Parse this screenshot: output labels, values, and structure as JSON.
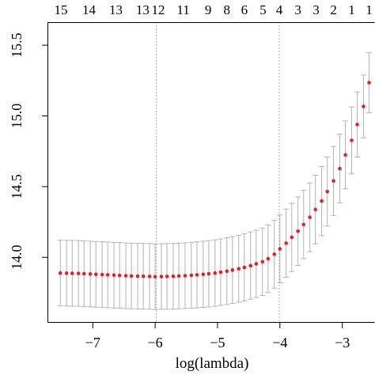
{
  "chart_data": {
    "type": "scatter",
    "error_bars": true,
    "xlabel": "log(lambda)",
    "xlim": [
      -7.72,
      -2.45
    ],
    "ylim": [
      13.54,
      15.66
    ],
    "grid": false,
    "xticks": [
      -7,
      -6,
      -5,
      -4,
      -3
    ],
    "xtick_labels": [
      "−7",
      "−6",
      "−5",
      "−4",
      "−3"
    ],
    "yticks": [
      14.0,
      14.5,
      15.0,
      15.5
    ],
    "ytick_labels": [
      "14.0",
      "14.5",
      "15.0",
      "15.5"
    ],
    "top_axis": [
      {
        "x": -7.51,
        "label": "15"
      },
      {
        "x": -7.06,
        "label": "14"
      },
      {
        "x": -6.63,
        "label": "13"
      },
      {
        "x": -6.2,
        "label": "13"
      },
      {
        "x": -5.95,
        "label": "12"
      },
      {
        "x": -5.55,
        "label": "11"
      },
      {
        "x": -5.15,
        "label": "9"
      },
      {
        "x": -4.85,
        "label": "8"
      },
      {
        "x": -4.57,
        "label": "6"
      },
      {
        "x": -4.27,
        "label": "5"
      },
      {
        "x": -4.01,
        "label": "4"
      },
      {
        "x": -3.71,
        "label": "3"
      },
      {
        "x": -3.42,
        "label": "3"
      },
      {
        "x": -3.14,
        "label": "2"
      },
      {
        "x": -2.85,
        "label": "1"
      },
      {
        "x": -2.57,
        "label": "1"
      }
    ],
    "vlines": [
      -5.98,
      -4.01
    ],
    "x": [
      -7.52,
      -7.42,
      -7.33,
      -7.23,
      -7.14,
      -7.04,
      -6.95,
      -6.85,
      -6.76,
      -6.66,
      -6.57,
      -6.47,
      -6.38,
      -6.28,
      -6.19,
      -6.09,
      -6.0,
      -5.9,
      -5.81,
      -5.71,
      -5.62,
      -5.52,
      -5.42,
      -5.33,
      -5.23,
      -5.14,
      -5.04,
      -4.95,
      -4.85,
      -4.76,
      -4.66,
      -4.57,
      -4.47,
      -4.38,
      -4.28,
      -4.19,
      -4.09,
      -4.0,
      -3.9,
      -3.81,
      -3.71,
      -3.62,
      -3.52,
      -3.43,
      -3.33,
      -3.24,
      -3.14,
      -3.04,
      -2.95,
      -2.85,
      -2.76,
      -2.66,
      -2.57
    ],
    "y": [
      13.889,
      13.888,
      13.887,
      13.886,
      13.884,
      13.882,
      13.88,
      13.878,
      13.876,
      13.874,
      13.872,
      13.87,
      13.868,
      13.867,
      13.866,
      13.865,
      13.863,
      13.864,
      13.865,
      13.866,
      13.868,
      13.87,
      13.873,
      13.876,
      13.88,
      13.884,
      13.889,
      13.895,
      13.902,
      13.91,
      13.919,
      13.929,
      13.941,
      13.954,
      13.969,
      13.99,
      14.022,
      14.06,
      14.1,
      14.141,
      14.185,
      14.232,
      14.283,
      14.338,
      14.398,
      14.465,
      14.54,
      14.628,
      14.724,
      14.827,
      14.939,
      15.067,
      15.235
    ],
    "upper": [
      14.121,
      14.12,
      14.119,
      14.118,
      14.116,
      14.114,
      14.112,
      14.11,
      14.108,
      14.106,
      14.104,
      14.102,
      14.1,
      14.099,
      14.098,
      14.097,
      14.095,
      14.096,
      14.097,
      14.098,
      14.1,
      14.102,
      14.106,
      14.109,
      14.114,
      14.118,
      14.124,
      14.13,
      14.138,
      14.146,
      14.156,
      14.166,
      14.179,
      14.192,
      14.208,
      14.229,
      14.262,
      14.3,
      14.341,
      14.382,
      14.427,
      14.474,
      14.526,
      14.581,
      14.642,
      14.709,
      14.784,
      14.871,
      14.964,
      15.063,
      15.169,
      15.289,
      15.447
    ],
    "lower": [
      13.657,
      13.656,
      13.655,
      13.654,
      13.652,
      13.65,
      13.648,
      13.646,
      13.644,
      13.642,
      13.64,
      13.638,
      13.636,
      13.635,
      13.634,
      13.633,
      13.631,
      13.632,
      13.633,
      13.634,
      13.636,
      13.638,
      13.64,
      13.643,
      13.646,
      13.65,
      13.654,
      13.66,
      13.666,
      13.674,
      13.682,
      13.692,
      13.703,
      13.716,
      13.73,
      13.751,
      13.782,
      13.82,
      13.859,
      13.9,
      13.943,
      13.99,
      14.04,
      14.095,
      14.154,
      14.221,
      14.296,
      14.385,
      14.484,
      14.591,
      14.709,
      14.845,
      15.023
    ],
    "point_color": "#e41f26",
    "errorbar_color": "#b3b3b3",
    "refline_color": "#555555"
  }
}
